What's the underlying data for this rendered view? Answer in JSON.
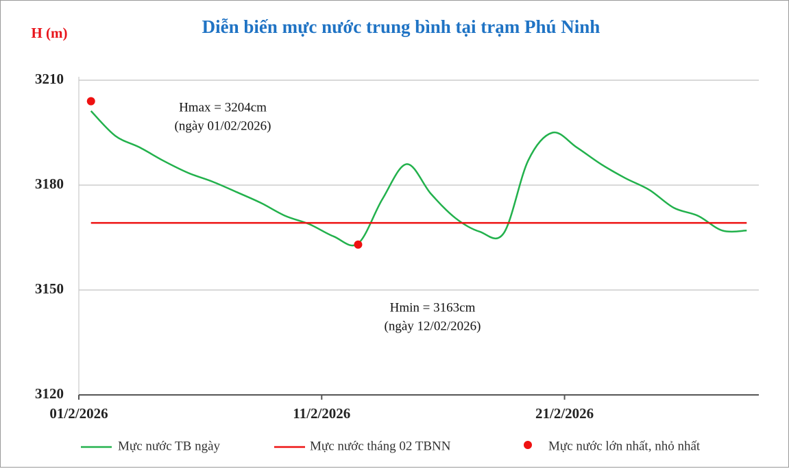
{
  "chart_data": {
    "type": "line",
    "title": "Diễn biến mực nước trung bình tại trạm Phú Ninh",
    "y_label": "H (m)",
    "x": [
      "01/2/2026",
      "02/2/2026",
      "03/2/2026",
      "04/2/2026",
      "05/2/2026",
      "06/2/2026",
      "07/2/2026",
      "08/2/2026",
      "09/2/2026",
      "10/2/2026",
      "11/2/2026",
      "12/2/2026",
      "13/2/2026",
      "14/2/2026",
      "15/2/2026",
      "16/2/2026",
      "17/2/2026",
      "18/2/2026",
      "19/2/2026",
      "20/2/2026",
      "21/2/2026",
      "22/2/2026",
      "23/2/2026",
      "24/2/2026",
      "25/2/2026",
      "26/2/2026",
      "27/2/2026",
      "28/2/2026"
    ],
    "series": [
      {
        "name": "Mực nước TB ngày",
        "color": "#22b14c",
        "smooth": true,
        "values": [
          3201.2,
          3194.1,
          3190.8,
          3186.9,
          3183.5,
          3181,
          3178,
          3174.9,
          3171.2,
          3168.8,
          3165.3,
          3163.3,
          3176,
          3186,
          3177.5,
          3170.6,
          3166.7,
          3166.3,
          3187,
          3195,
          3190.8,
          3186,
          3182,
          3178.6,
          3173.5,
          3171.2,
          3167,
          3167
        ]
      },
      {
        "name": "Mực nước tháng 02 TBNN",
        "color": "#ee1111",
        "smooth": false,
        "values": [
          3169.2,
          3169.2,
          3169.2,
          3169.2,
          3169.2,
          3169.2,
          3169.2,
          3169.2,
          3169.2,
          3169.2,
          3169.2,
          3169.2,
          3169.2,
          3169.2,
          3169.2,
          3169.2,
          3169.2,
          3169.2,
          3169.2,
          3169.2,
          3169.2,
          3169.2,
          3169.2,
          3169.2,
          3169.2,
          3169.2,
          3169.2,
          3169.2
        ]
      }
    ],
    "extremes": {
      "name": "Mực nước lớn nhất, nhỏ nhất",
      "color": "#ee1111",
      "x": [
        "01/2/2026",
        "12/2/2026"
      ],
      "values": [
        3204,
        3163
      ]
    },
    "annotations": [
      {
        "lines": [
          "Hmax = 3204cm",
          "(ngày 01/02/2026)"
        ]
      },
      {
        "lines": [
          "Hmin = 3163cm",
          "(ngày 12/02/2026)"
        ]
      }
    ],
    "ylim": [
      3120,
      3210
    ],
    "yticks": [
      3120,
      3150,
      3180,
      3210
    ],
    "xticks": [
      "01/2/2026",
      "11/2/2026",
      "21/2/2026"
    ],
    "grid": true,
    "legend": "bottom"
  }
}
